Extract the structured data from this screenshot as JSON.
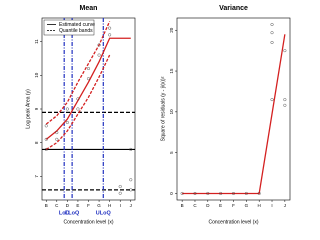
{
  "chart_data": [
    {
      "type": "line",
      "title": "Mean",
      "x_label": "Concentration level (x)",
      "y_label": "Log peak Area (y)",
      "x": [
        1,
        2,
        3,
        4,
        5,
        6,
        7,
        8,
        9
      ],
      "xlim": [
        0.6,
        9.4
      ],
      "xticks": [
        {
          "value": 1,
          "label": "B"
        },
        {
          "value": 2,
          "label": "C"
        },
        {
          "value": 3,
          "label": "D"
        },
        {
          "value": 4,
          "label": "E"
        },
        {
          "value": 5,
          "label": "F"
        },
        {
          "value": 6,
          "label": "G"
        },
        {
          "value": 7,
          "label": "H"
        },
        {
          "value": 8,
          "label": "I"
        },
        {
          "value": 9,
          "label": "J"
        }
      ],
      "ylim": [
        6.3,
        11.7
      ],
      "yticks": [
        7,
        8,
        9,
        10,
        11
      ],
      "series": [
        {
          "name": "Estimated curve",
          "color": "#d42020",
          "values": [
            8.1,
            8.35,
            8.7,
            9.25,
            9.8,
            10.4,
            11.1,
            11.1,
            11.1
          ]
        }
      ],
      "bands": {
        "name": "Quantile bands",
        "color": "#d42020",
        "upper": [
          8.55,
          8.8,
          9.2,
          9.8,
          10.35,
          10.9,
          11.6,
          null,
          null
        ],
        "lower": [
          7.8,
          8.0,
          8.35,
          8.85,
          9.35,
          9.95,
          10.6,
          null,
          null
        ]
      },
      "hlines": [
        {
          "value": 8.9,
          "dashed": true
        },
        {
          "value": 7.8,
          "dashed": false
        },
        {
          "value": 6.6,
          "dashed": true
        }
      ],
      "vlines": [
        {
          "label": "LoD",
          "x": 2.7
        },
        {
          "label": "LLoQ",
          "x": 3.45
        },
        {
          "label": "ULoQ",
          "x": 6.4
        }
      ],
      "vline_color": "#2030c0",
      "points": {
        "x": [
          1,
          1,
          1,
          2,
          2,
          3,
          3,
          4,
          4,
          5,
          5,
          6,
          6,
          7,
          7,
          8,
          8,
          9,
          9,
          9
        ],
        "y": [
          8.5,
          8.1,
          7.8,
          8.3,
          8.1,
          8.6,
          9.0,
          9.0,
          9.3,
          9.9,
          10.2,
          10.6,
          10.9,
          11.2,
          11.4,
          6.7,
          6.5,
          7.8,
          6.9,
          6.6
        ]
      },
      "legend": "top-left"
    },
    {
      "type": "line",
      "title": "Variance",
      "x_label": "Concentration level (x)",
      "y_label": "Square of residuals (y - ŷ(x))²",
      "x": [
        1,
        2,
        3,
        4,
        5,
        6,
        7,
        8,
        9
      ],
      "xlim": [
        0.6,
        9.4
      ],
      "xticks": [
        {
          "value": 1,
          "label": "B"
        },
        {
          "value": 2,
          "label": "C"
        },
        {
          "value": 3,
          "label": "D"
        },
        {
          "value": 4,
          "label": "E"
        },
        {
          "value": 5,
          "label": "F"
        },
        {
          "value": 6,
          "label": "G"
        },
        {
          "value": 7,
          "label": "H"
        },
        {
          "value": 8,
          "label": "I"
        },
        {
          "value": 9,
          "label": "J"
        }
      ],
      "ylim": [
        -0.8,
        21.5
      ],
      "yticks": [
        0,
        5,
        10,
        15,
        20
      ],
      "series": [
        {
          "color": "#d42020",
          "values": [
            0,
            0,
            0,
            0,
            0,
            0,
            0,
            9.75,
            19.5
          ]
        }
      ],
      "points": {
        "x": [
          1,
          2,
          3,
          4,
          5,
          6,
          7,
          8,
          8,
          8,
          8,
          9,
          9,
          9
        ],
        "y": [
          0,
          0,
          0,
          0,
          0,
          0,
          0,
          20.7,
          19.7,
          18.5,
          11.5,
          17.5,
          11.5,
          10.8
        ]
      }
    }
  ]
}
